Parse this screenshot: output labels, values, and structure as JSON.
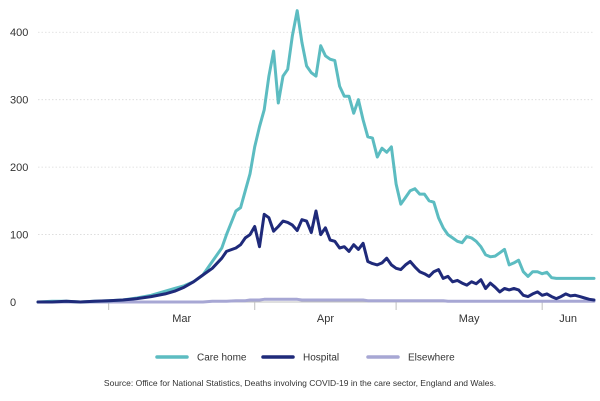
{
  "chart_data": {
    "type": "line",
    "title": "",
    "xlabel": "",
    "ylabel": "",
    "ylim": [
      0,
      430
    ],
    "y_ticks": [
      0,
      100,
      200,
      300,
      400
    ],
    "x_tick_labels": [
      "Mar",
      "Apr",
      "May",
      "Jun"
    ],
    "x_tick_dates": [
      "2020-03-01",
      "2020-04-01",
      "2020-05-01",
      "2020-06-01"
    ],
    "x_range": [
      "2020-02-15",
      "2020-06-12"
    ],
    "grid": "horizontal",
    "legend_position": "bottom",
    "dates": [
      "2020-02-15",
      "2020-02-18",
      "2020-02-21",
      "2020-02-24",
      "2020-02-27",
      "2020-03-01",
      "2020-03-04",
      "2020-03-07",
      "2020-03-10",
      "2020-03-13",
      "2020-03-15",
      "2020-03-17",
      "2020-03-19",
      "2020-03-21",
      "2020-03-23",
      "2020-03-25",
      "2020-03-26",
      "2020-03-28",
      "2020-03-29",
      "2020-03-30",
      "2020-03-31",
      "2020-04-01",
      "2020-04-02",
      "2020-04-03",
      "2020-04-04",
      "2020-04-05",
      "2020-04-06",
      "2020-04-07",
      "2020-04-08",
      "2020-04-09",
      "2020-04-10",
      "2020-04-11",
      "2020-04-12",
      "2020-04-13",
      "2020-04-14",
      "2020-04-15",
      "2020-04-16",
      "2020-04-17",
      "2020-04-18",
      "2020-04-19",
      "2020-04-20",
      "2020-04-21",
      "2020-04-22",
      "2020-04-23",
      "2020-04-24",
      "2020-04-25",
      "2020-04-26",
      "2020-04-27",
      "2020-04-28",
      "2020-04-29",
      "2020-04-30",
      "2020-05-01",
      "2020-05-02",
      "2020-05-03",
      "2020-05-04",
      "2020-05-05",
      "2020-05-06",
      "2020-05-07",
      "2020-05-08",
      "2020-05-09",
      "2020-05-10",
      "2020-05-11",
      "2020-05-12",
      "2020-05-13",
      "2020-05-14",
      "2020-05-15",
      "2020-05-16",
      "2020-05-17",
      "2020-05-18",
      "2020-05-19",
      "2020-05-20",
      "2020-05-21",
      "2020-05-22",
      "2020-05-23",
      "2020-05-24",
      "2020-05-25",
      "2020-05-26",
      "2020-05-27",
      "2020-05-28",
      "2020-05-29",
      "2020-05-30",
      "2020-05-31",
      "2020-06-01",
      "2020-06-02",
      "2020-06-03",
      "2020-06-04",
      "2020-06-05",
      "2020-06-06",
      "2020-06-07",
      "2020-06-08",
      "2020-06-09",
      "2020-06-10",
      "2020-06-11",
      "2020-06-12"
    ],
    "series": [
      {
        "name": "Care home",
        "color": "#5cbcc1",
        "values": [
          0,
          1,
          1,
          0,
          1,
          2,
          3,
          6,
          10,
          16,
          20,
          24,
          30,
          40,
          60,
          80,
          100,
          135,
          140,
          165,
          190,
          230,
          260,
          285,
          335,
          372,
          295,
          335,
          345,
          395,
          432,
          385,
          350,
          340,
          335,
          380,
          365,
          360,
          358,
          320,
          305,
          305,
          280,
          300,
          270,
          245,
          243,
          215,
          228,
          222,
          230,
          175,
          145,
          155,
          165,
          168,
          160,
          160,
          150,
          148,
          125,
          110,
          100,
          95,
          90,
          88,
          97,
          95,
          90,
          82,
          70,
          67,
          68,
          73,
          78,
          55,
          58,
          62,
          45,
          38,
          45,
          45,
          42,
          44,
          36,
          35,
          35,
          35,
          35,
          35,
          35,
          35,
          35,
          35
        ]
      },
      {
        "name": "Hospital",
        "color": "#1f2a7a",
        "values": [
          0,
          0,
          1,
          0,
          1,
          2,
          3,
          5,
          8,
          12,
          16,
          22,
          30,
          40,
          50,
          65,
          75,
          80,
          85,
          95,
          100,
          112,
          82,
          130,
          125,
          105,
          112,
          120,
          118,
          114,
          106,
          122,
          120,
          103,
          135,
          100,
          110,
          92,
          90,
          80,
          82,
          75,
          85,
          78,
          87,
          60,
          57,
          55,
          58,
          65,
          55,
          50,
          48,
          55,
          60,
          52,
          45,
          42,
          38,
          45,
          48,
          35,
          38,
          30,
          32,
          28,
          25,
          30,
          27,
          33,
          20,
          28,
          22,
          15,
          20,
          18,
          20,
          18,
          10,
          8,
          12,
          15,
          10,
          12,
          8,
          5,
          8,
          12,
          9,
          10,
          8,
          6,
          4,
          3
        ]
      },
      {
        "name": "Elsewhere",
        "color": "#a7a7d4",
        "values": [
          0,
          0,
          0,
          0,
          0,
          0,
          0,
          0,
          0,
          0,
          0,
          0,
          0,
          0,
          1,
          1,
          1,
          2,
          2,
          2,
          3,
          3,
          3,
          4,
          4,
          4,
          4,
          4,
          4,
          4,
          4,
          3,
          3,
          3,
          3,
          3,
          3,
          3,
          3,
          3,
          3,
          3,
          3,
          3,
          3,
          2,
          2,
          2,
          2,
          2,
          2,
          2,
          2,
          2,
          2,
          2,
          2,
          2,
          2,
          2,
          2,
          2,
          1,
          1,
          1,
          1,
          1,
          1,
          1,
          1,
          1,
          1,
          1,
          1,
          1,
          1,
          1,
          1,
          1,
          1,
          1,
          1,
          1,
          1,
          1,
          1,
          1,
          1,
          1,
          1,
          1,
          1,
          1,
          1
        ]
      }
    ]
  },
  "legend": [
    {
      "label": "Care home",
      "color": "#5cbcc1"
    },
    {
      "label": "Hospital",
      "color": "#1f2a7a"
    },
    {
      "label": "Elsewhere",
      "color": "#a7a7d4"
    }
  ],
  "source_note": "Source: Office for National Statistics, Deaths involving COVID-19 in the care sector, England and Wales."
}
